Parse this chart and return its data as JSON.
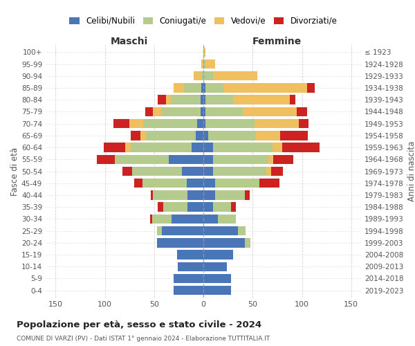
{
  "age_groups": [
    "0-4",
    "5-9",
    "10-14",
    "15-19",
    "20-24",
    "25-29",
    "30-34",
    "35-39",
    "40-44",
    "45-49",
    "50-54",
    "55-59",
    "60-64",
    "65-69",
    "70-74",
    "75-79",
    "80-84",
    "85-89",
    "90-94",
    "95-99",
    "100+"
  ],
  "birth_years": [
    "2019-2023",
    "2014-2018",
    "2009-2013",
    "2004-2008",
    "1999-2003",
    "1994-1998",
    "1989-1993",
    "1984-1988",
    "1979-1983",
    "1974-1978",
    "1969-1973",
    "1964-1968",
    "1959-1963",
    "1954-1958",
    "1949-1953",
    "1944-1948",
    "1939-1943",
    "1934-1938",
    "1929-1933",
    "1924-1928",
    "≤ 1923"
  ],
  "colors": {
    "celibi": "#4a76b8",
    "coniugati": "#b5cb8e",
    "vedovi": "#f0c060",
    "divorziati": "#cc2222"
  },
  "males": {
    "celibi": [
      30,
      30,
      26,
      27,
      47,
      42,
      32,
      16,
      16,
      17,
      22,
      35,
      12,
      8,
      6,
      3,
      3,
      2,
      0,
      0,
      0
    ],
    "coniugati": [
      0,
      0,
      0,
      0,
      0,
      5,
      20,
      25,
      35,
      45,
      50,
      55,
      62,
      50,
      55,
      40,
      30,
      18,
      2,
      0,
      0
    ],
    "vedovi": [
      0,
      0,
      0,
      0,
      0,
      0,
      0,
      0,
      0,
      0,
      0,
      0,
      5,
      6,
      14,
      8,
      5,
      10,
      8,
      2,
      0
    ],
    "divorziati": [
      0,
      0,
      0,
      0,
      0,
      0,
      2,
      5,
      2,
      8,
      10,
      18,
      22,
      10,
      16,
      8,
      8,
      0,
      0,
      0,
      0
    ]
  },
  "females": {
    "nubili": [
      28,
      28,
      24,
      30,
      42,
      35,
      15,
      10,
      12,
      12,
      10,
      10,
      10,
      5,
      2,
      2,
      2,
      2,
      0,
      0,
      0
    ],
    "coniugate": [
      0,
      0,
      0,
      0,
      6,
      8,
      18,
      18,
      30,
      45,
      54,
      56,
      60,
      48,
      50,
      38,
      28,
      18,
      10,
      2,
      0
    ],
    "vedove": [
      0,
      0,
      0,
      0,
      0,
      0,
      0,
      0,
      0,
      0,
      5,
      5,
      10,
      25,
      45,
      55,
      58,
      85,
      45,
      10,
      2
    ],
    "divorziate": [
      0,
      0,
      0,
      0,
      0,
      0,
      0,
      5,
      5,
      20,
      12,
      20,
      38,
      28,
      10,
      10,
      5,
      8,
      0,
      0,
      0
    ]
  },
  "title": "Popolazione per età, sesso e stato civile - 2024",
  "subtitle": "COMUNE DI VARZI (PV) - Dati ISTAT 1° gennaio 2024 - Elaborazione TUTTITALIA.IT",
  "xlabel_left": "Maschi",
  "xlabel_right": "Femmine",
  "ylabel_left": "Fasce di età",
  "ylabel_right": "Anni di nascita",
  "xlim": 160,
  "legend_labels": [
    "Celibi/Nubili",
    "Coniugati/e",
    "Vedovi/e",
    "Divorziati/e"
  ],
  "background_color": "#ffffff",
  "grid_color": "#cccccc"
}
